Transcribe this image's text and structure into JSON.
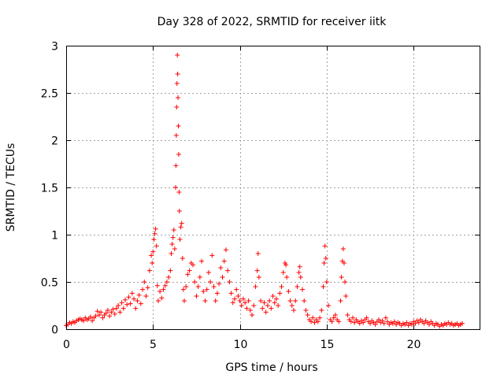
{
  "chart_data": {
    "type": "scatter",
    "title": "Day 328 of 2022, SRMTID for receiver iitk",
    "xlabel": "GPS time / hours",
    "ylabel": "SRMTID / TECUs",
    "xlim": [
      0,
      23.8
    ],
    "ylim": [
      0,
      3
    ],
    "xticks": [
      0,
      5,
      10,
      15,
      20
    ],
    "yticks": [
      0,
      0.5,
      1,
      1.5,
      2,
      2.5,
      3
    ],
    "xtick_labels": [
      "0",
      "5",
      "10",
      "15",
      "20"
    ],
    "ytick_labels": [
      "0",
      "0.5",
      "1",
      "1.5",
      "2",
      "2.5",
      "3"
    ],
    "grid": true,
    "marker": "+",
    "color": "#ff0000",
    "series": [
      {
        "name": "SRMTID",
        "points": [
          [
            0.0,
            0.04
          ],
          [
            0.1,
            0.05
          ],
          [
            0.2,
            0.07
          ],
          [
            0.3,
            0.06
          ],
          [
            0.4,
            0.08
          ],
          [
            0.5,
            0.07
          ],
          [
            0.6,
            0.09
          ],
          [
            0.7,
            0.1
          ],
          [
            0.8,
            0.11
          ],
          [
            0.9,
            0.1
          ],
          [
            1.0,
            0.09
          ],
          [
            1.1,
            0.12
          ],
          [
            1.2,
            0.1
          ],
          [
            1.3,
            0.11
          ],
          [
            1.4,
            0.13
          ],
          [
            1.5,
            0.09
          ],
          [
            1.6,
            0.12
          ],
          [
            1.7,
            0.14
          ],
          [
            1.8,
            0.19
          ],
          [
            1.9,
            0.15
          ],
          [
            2.0,
            0.18
          ],
          [
            2.1,
            0.12
          ],
          [
            2.2,
            0.15
          ],
          [
            2.3,
            0.17
          ],
          [
            2.4,
            0.2
          ],
          [
            2.5,
            0.14
          ],
          [
            2.6,
            0.18
          ],
          [
            2.7,
            0.21
          ],
          [
            2.8,
            0.16
          ],
          [
            2.9,
            0.22
          ],
          [
            3.0,
            0.25
          ],
          [
            3.1,
            0.18
          ],
          [
            3.2,
            0.28
          ],
          [
            3.3,
            0.22
          ],
          [
            3.4,
            0.31
          ],
          [
            3.5,
            0.26
          ],
          [
            3.6,
            0.34
          ],
          [
            3.7,
            0.27
          ],
          [
            3.8,
            0.38
          ],
          [
            3.9,
            0.32
          ],
          [
            4.0,
            0.22
          ],
          [
            4.1,
            0.3
          ],
          [
            4.2,
            0.36
          ],
          [
            4.3,
            0.27
          ],
          [
            4.4,
            0.42
          ],
          [
            4.5,
            0.5
          ],
          [
            4.6,
            0.35
          ],
          [
            4.7,
            0.44
          ],
          [
            4.8,
            0.62
          ],
          [
            4.9,
            0.78
          ],
          [
            4.95,
            0.7
          ],
          [
            5.0,
            0.82
          ],
          [
            5.05,
            0.95
          ],
          [
            5.1,
            1.01
          ],
          [
            5.15,
            1.06
          ],
          [
            5.2,
            0.88
          ],
          [
            5.25,
            0.46
          ],
          [
            5.3,
            0.3
          ],
          [
            5.4,
            0.4
          ],
          [
            5.5,
            0.33
          ],
          [
            5.6,
            0.42
          ],
          [
            5.7,
            0.46
          ],
          [
            5.8,
            0.5
          ],
          [
            5.9,
            0.55
          ],
          [
            6.0,
            0.62
          ],
          [
            6.05,
            0.8
          ],
          [
            6.1,
            0.9
          ],
          [
            6.15,
            0.97
          ],
          [
            6.2,
            1.05
          ],
          [
            6.25,
            0.85
          ],
          [
            6.3,
            1.5
          ],
          [
            6.32,
            1.73
          ],
          [
            6.34,
            2.05
          ],
          [
            6.36,
            2.35
          ],
          [
            6.38,
            2.6
          ],
          [
            6.4,
            2.9
          ],
          [
            6.42,
            2.7
          ],
          [
            6.44,
            2.45
          ],
          [
            6.46,
            2.15
          ],
          [
            6.48,
            1.85
          ],
          [
            6.5,
            1.45
          ],
          [
            6.52,
            1.25
          ],
          [
            6.55,
            0.95
          ],
          [
            6.6,
            1.08
          ],
          [
            6.65,
            1.12
          ],
          [
            6.7,
            0.75
          ],
          [
            6.75,
            0.42
          ],
          [
            6.8,
            0.3
          ],
          [
            6.9,
            0.45
          ],
          [
            7.0,
            0.58
          ],
          [
            7.1,
            0.62
          ],
          [
            7.2,
            0.7
          ],
          [
            7.3,
            0.68
          ],
          [
            7.4,
            0.5
          ],
          [
            7.5,
            0.35
          ],
          [
            7.6,
            0.45
          ],
          [
            7.7,
            0.55
          ],
          [
            7.8,
            0.72
          ],
          [
            7.9,
            0.4
          ],
          [
            8.0,
            0.3
          ],
          [
            8.1,
            0.42
          ],
          [
            8.2,
            0.6
          ],
          [
            8.3,
            0.5
          ],
          [
            8.4,
            0.78
          ],
          [
            8.5,
            0.45
          ],
          [
            8.6,
            0.3
          ],
          [
            8.7,
            0.38
          ],
          [
            8.8,
            0.48
          ],
          [
            8.9,
            0.65
          ],
          [
            9.0,
            0.55
          ],
          [
            9.1,
            0.72
          ],
          [
            9.2,
            0.84
          ],
          [
            9.3,
            0.62
          ],
          [
            9.4,
            0.5
          ],
          [
            9.5,
            0.38
          ],
          [
            9.6,
            0.28
          ],
          [
            9.7,
            0.32
          ],
          [
            9.8,
            0.42
          ],
          [
            9.9,
            0.35
          ],
          [
            10.0,
            0.3
          ],
          [
            10.1,
            0.25
          ],
          [
            10.2,
            0.32
          ],
          [
            10.3,
            0.28
          ],
          [
            10.4,
            0.22
          ],
          [
            10.5,
            0.3
          ],
          [
            10.6,
            0.2
          ],
          [
            10.7,
            0.15
          ],
          [
            10.8,
            0.25
          ],
          [
            10.9,
            0.45
          ],
          [
            11.0,
            0.62
          ],
          [
            11.05,
            0.8
          ],
          [
            11.1,
            0.55
          ],
          [
            11.2,
            0.3
          ],
          [
            11.3,
            0.22
          ],
          [
            11.4,
            0.28
          ],
          [
            11.5,
            0.18
          ],
          [
            11.6,
            0.25
          ],
          [
            11.7,
            0.3
          ],
          [
            11.8,
            0.22
          ],
          [
            11.9,
            0.35
          ],
          [
            12.0,
            0.28
          ],
          [
            12.1,
            0.32
          ],
          [
            12.2,
            0.25
          ],
          [
            12.3,
            0.38
          ],
          [
            12.4,
            0.45
          ],
          [
            12.5,
            0.6
          ],
          [
            12.6,
            0.7
          ],
          [
            12.65,
            0.68
          ],
          [
            12.7,
            0.55
          ],
          [
            12.8,
            0.4
          ],
          [
            12.9,
            0.3
          ],
          [
            13.0,
            0.25
          ],
          [
            13.1,
            0.2
          ],
          [
            13.2,
            0.3
          ],
          [
            13.3,
            0.45
          ],
          [
            13.4,
            0.6
          ],
          [
            13.45,
            0.66
          ],
          [
            13.5,
            0.55
          ],
          [
            13.6,
            0.42
          ],
          [
            13.7,
            0.3
          ],
          [
            13.8,
            0.2
          ],
          [
            13.9,
            0.15
          ],
          [
            14.0,
            0.1
          ],
          [
            14.1,
            0.08
          ],
          [
            14.2,
            0.12
          ],
          [
            14.3,
            0.07
          ],
          [
            14.4,
            0.1
          ],
          [
            14.5,
            0.08
          ],
          [
            14.6,
            0.12
          ],
          [
            14.7,
            0.2
          ],
          [
            14.8,
            0.45
          ],
          [
            14.85,
            0.7
          ],
          [
            14.9,
            0.88
          ],
          [
            14.95,
            0.75
          ],
          [
            15.0,
            0.5
          ],
          [
            15.1,
            0.25
          ],
          [
            15.2,
            0.1
          ],
          [
            15.3,
            0.08
          ],
          [
            15.4,
            0.12
          ],
          [
            15.5,
            0.15
          ],
          [
            15.6,
            0.1
          ],
          [
            15.7,
            0.08
          ],
          [
            15.8,
            0.3
          ],
          [
            15.85,
            0.55
          ],
          [
            15.9,
            0.72
          ],
          [
            15.95,
            0.85
          ],
          [
            16.0,
            0.7
          ],
          [
            16.05,
            0.5
          ],
          [
            16.1,
            0.35
          ],
          [
            16.2,
            0.15
          ],
          [
            16.3,
            0.1
          ],
          [
            16.4,
            0.08
          ],
          [
            16.5,
            0.12
          ],
          [
            16.6,
            0.07
          ],
          [
            16.7,
            0.1
          ],
          [
            16.8,
            0.08
          ],
          [
            16.9,
            0.06
          ],
          [
            17.0,
            0.09
          ],
          [
            17.1,
            0.07
          ],
          [
            17.2,
            0.1
          ],
          [
            17.3,
            0.12
          ],
          [
            17.4,
            0.08
          ],
          [
            17.5,
            0.06
          ],
          [
            17.6,
            0.09
          ],
          [
            17.7,
            0.07
          ],
          [
            17.8,
            0.05
          ],
          [
            17.9,
            0.08
          ],
          [
            18.0,
            0.1
          ],
          [
            18.1,
            0.07
          ],
          [
            18.2,
            0.09
          ],
          [
            18.3,
            0.06
          ],
          [
            18.4,
            0.12
          ],
          [
            18.5,
            0.08
          ],
          [
            18.6,
            0.05
          ],
          [
            18.7,
            0.07
          ],
          [
            18.8,
            0.06
          ],
          [
            18.9,
            0.08
          ],
          [
            19.0,
            0.05
          ],
          [
            19.1,
            0.07
          ],
          [
            19.2,
            0.06
          ],
          [
            19.3,
            0.04
          ],
          [
            19.4,
            0.06
          ],
          [
            19.5,
            0.05
          ],
          [
            19.6,
            0.07
          ],
          [
            19.7,
            0.04
          ],
          [
            19.8,
            0.06
          ],
          [
            19.9,
            0.05
          ],
          [
            20.0,
            0.08
          ],
          [
            20.1,
            0.06
          ],
          [
            20.2,
            0.09
          ],
          [
            20.3,
            0.07
          ],
          [
            20.4,
            0.1
          ],
          [
            20.5,
            0.08
          ],
          [
            20.6,
            0.06
          ],
          [
            20.7,
            0.09
          ],
          [
            20.8,
            0.07
          ],
          [
            20.9,
            0.05
          ],
          [
            21.0,
            0.08
          ],
          [
            21.1,
            0.06
          ],
          [
            21.2,
            0.04
          ],
          [
            21.3,
            0.06
          ],
          [
            21.4,
            0.05
          ],
          [
            21.5,
            0.03
          ],
          [
            21.6,
            0.05
          ],
          [
            21.7,
            0.04
          ],
          [
            21.8,
            0.06
          ],
          [
            21.9,
            0.05
          ],
          [
            22.0,
            0.07
          ],
          [
            22.1,
            0.05
          ],
          [
            22.2,
            0.06
          ],
          [
            22.3,
            0.04
          ],
          [
            22.4,
            0.05
          ],
          [
            22.5,
            0.06
          ],
          [
            22.6,
            0.04
          ],
          [
            22.7,
            0.05
          ],
          [
            22.8,
            0.06
          ]
        ]
      }
    ]
  }
}
